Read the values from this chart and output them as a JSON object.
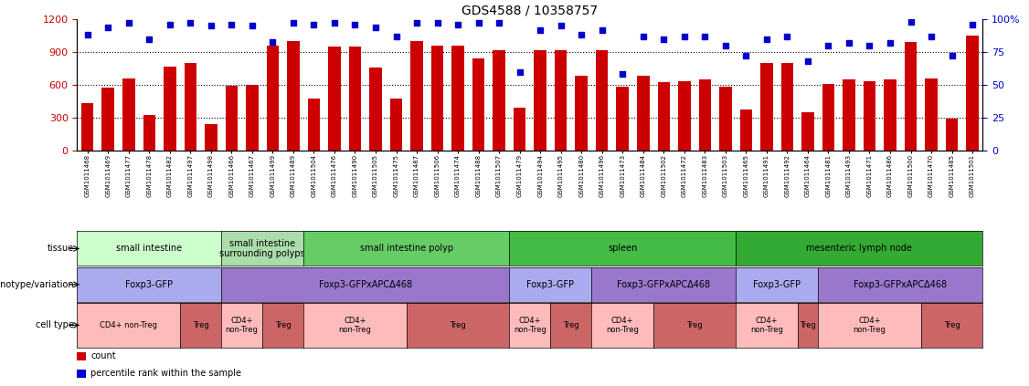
{
  "title": "GDS4588 / 10358757",
  "samples": [
    "GSM1011468",
    "GSM1011469",
    "GSM1011477",
    "GSM1011478",
    "GSM1011482",
    "GSM1011497",
    "GSM1011498",
    "GSM1011466",
    "GSM1011467",
    "GSM1011499",
    "GSM1011489",
    "GSM1011504",
    "GSM1011476",
    "GSM1011490",
    "GSM1011505",
    "GSM1011475",
    "GSM1011487",
    "GSM1011506",
    "GSM1011474",
    "GSM1011488",
    "GSM1011507",
    "GSM1011479",
    "GSM1011494",
    "GSM1011495",
    "GSM1011480",
    "GSM1011496",
    "GSM1011473",
    "GSM1011484",
    "GSM1011502",
    "GSM1011472",
    "GSM1011483",
    "GSM1011503",
    "GSM1011465",
    "GSM1011491",
    "GSM1011492",
    "GSM1011464",
    "GSM1011481",
    "GSM1011493",
    "GSM1011471",
    "GSM1011486",
    "GSM1011500",
    "GSM1011470",
    "GSM1011485",
    "GSM1011501"
  ],
  "counts": [
    430,
    570,
    660,
    320,
    770,
    800,
    240,
    590,
    600,
    960,
    1000,
    470,
    950,
    950,
    760,
    470,
    1000,
    960,
    960,
    840,
    920,
    390,
    920,
    920,
    680,
    920,
    580,
    680,
    620,
    630,
    650,
    580,
    370,
    800,
    800,
    350,
    610,
    650,
    630,
    650,
    990,
    660,
    290,
    1050
  ],
  "percentiles": [
    88,
    94,
    97,
    85,
    96,
    97,
    95,
    96,
    95,
    83,
    97,
    96,
    97,
    96,
    94,
    87,
    97,
    97,
    96,
    97,
    97,
    60,
    92,
    95,
    88,
    92,
    58,
    87,
    85,
    87,
    87,
    80,
    72,
    85,
    87,
    68,
    80,
    82,
    80,
    82,
    98,
    87,
    72,
    96
  ],
  "bar_color": "#CC0000",
  "dot_color": "#0000CC",
  "ylim_left": [
    0,
    1200
  ],
  "ylim_right": [
    0,
    100
  ],
  "yticks_left": [
    0,
    300,
    600,
    900,
    1200
  ],
  "yticks_right": [
    0,
    25,
    50,
    75,
    100
  ],
  "tissue_groups": [
    {
      "label": "small intestine",
      "start": 0,
      "end": 7,
      "color": "#CCFFCC"
    },
    {
      "label": "small intestine\nsurrounding polyps",
      "start": 7,
      "end": 11,
      "color": "#AADDAA"
    },
    {
      "label": "small intestine polyp",
      "start": 11,
      "end": 21,
      "color": "#66CC66"
    },
    {
      "label": "spleen",
      "start": 21,
      "end": 32,
      "color": "#44BB44"
    },
    {
      "label": "mesenteric lymph node",
      "start": 32,
      "end": 44,
      "color": "#33AA33"
    }
  ],
  "genotype_groups": [
    {
      "label": "Foxp3-GFP",
      "start": 0,
      "end": 7,
      "color": "#AAAAEE"
    },
    {
      "label": "Foxp3-GFPxAPCΔ468",
      "start": 7,
      "end": 21,
      "color": "#9977CC"
    },
    {
      "label": "Foxp3-GFP",
      "start": 21,
      "end": 25,
      "color": "#AAAAEE"
    },
    {
      "label": "Foxp3-GFPxAPCΔ468",
      "start": 25,
      "end": 32,
      "color": "#9977CC"
    },
    {
      "label": "Foxp3-GFP",
      "start": 32,
      "end": 36,
      "color": "#AAAAEE"
    },
    {
      "label": "Foxp3-GFPxAPCΔ468",
      "start": 36,
      "end": 44,
      "color": "#9977CC"
    }
  ],
  "celltype_groups": [
    {
      "label": "CD4+ non-Treg",
      "start": 0,
      "end": 5,
      "color": "#FFBBBB"
    },
    {
      "label": "Treg",
      "start": 5,
      "end": 7,
      "color": "#CC6666"
    },
    {
      "label": "CD4+\nnon-Treg",
      "start": 7,
      "end": 9,
      "color": "#FFBBBB"
    },
    {
      "label": "Treg",
      "start": 9,
      "end": 11,
      "color": "#CC6666"
    },
    {
      "label": "CD4+\nnon-Treg",
      "start": 11,
      "end": 16,
      "color": "#FFBBBB"
    },
    {
      "label": "Treg",
      "start": 16,
      "end": 21,
      "color": "#CC6666"
    },
    {
      "label": "CD4+\nnon-Treg",
      "start": 21,
      "end": 23,
      "color": "#FFBBBB"
    },
    {
      "label": "Treg",
      "start": 23,
      "end": 25,
      "color": "#CC6666"
    },
    {
      "label": "CD4+\nnon-Treg",
      "start": 25,
      "end": 28,
      "color": "#FFBBBB"
    },
    {
      "label": "Treg",
      "start": 28,
      "end": 32,
      "color": "#CC6666"
    },
    {
      "label": "CD4+\nnon-Treg",
      "start": 32,
      "end": 35,
      "color": "#FFBBBB"
    },
    {
      "label": "Treg",
      "start": 35,
      "end": 36,
      "color": "#CC6666"
    },
    {
      "label": "CD4+\nnon-Treg",
      "start": 36,
      "end": 41,
      "color": "#FFBBBB"
    },
    {
      "label": "Treg",
      "start": 41,
      "end": 44,
      "color": "#CC6666"
    }
  ],
  "row_labels": [
    "tissue",
    "genotype/variation",
    "cell type"
  ],
  "legend_items": [
    {
      "color": "#CC0000",
      "label": "count"
    },
    {
      "color": "#0000CC",
      "label": "percentile rank within the sample"
    }
  ]
}
